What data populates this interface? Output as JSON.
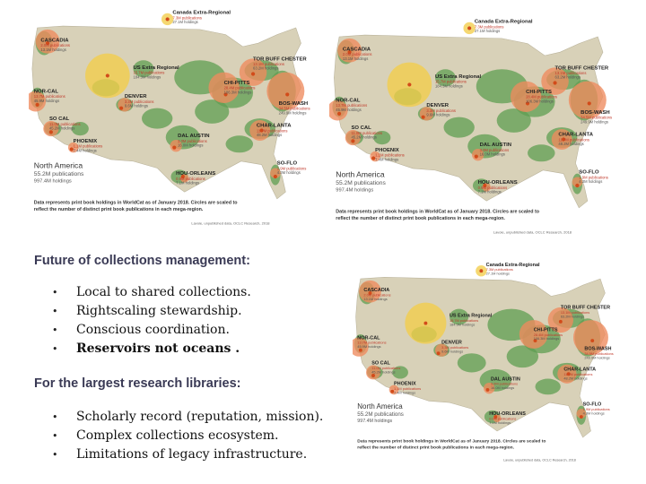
{
  "maps": [
    {
      "regions": [
        {
          "name": "CASCADIA",
          "line1": "2.0M publications",
          "line2": "13.1M holdings"
        },
        {
          "name": "NOR-CAL",
          "line1": "13.7M publications",
          "line2": "45.9M holdings"
        },
        {
          "name": "SO CAL",
          "line1": "11.0M publications",
          "line2": "45.2M holdings"
        },
        {
          "name": "PHOENIX",
          "line1": "1.1M publications",
          "line2": "7.4M holdings"
        },
        {
          "name": "DENVER",
          "line1": "3.3M publications",
          "line2": "9.6M holdings"
        },
        {
          "name": "US Extra Regional",
          "line1": "15.7M publications",
          "line2": "184.3M holdings"
        },
        {
          "name": "Canada Extra-Regional",
          "line1": "7.3M publications",
          "line2": "27.1M holdings"
        },
        {
          "name": "TOR BUFF CHESTER",
          "line1": "13.1M publications",
          "line2": "63.2M holdings"
        },
        {
          "name": "CHI-PITTS",
          "line1": "28.4M publications",
          "line2": "106.3M holdings"
        },
        {
          "name": "BOS-WASH",
          "line1": "34.5M publications",
          "line2": "249.9M holdings"
        },
        {
          "name": "CHAR-LANTA",
          "line1": "11.7M publications",
          "line2": "48.2M holdings"
        },
        {
          "name": "DAL AUSTIN",
          "line1": "3.0M publications",
          "line2": "16.0M holdings"
        },
        {
          "name": "HOU-ORLEANS",
          "line1": "0.9M publications",
          "line2": "7.1M holdings"
        },
        {
          "name": "SO-FLO",
          "line1": "1.9M publications",
          "line2": "4.3M holdings"
        }
      ],
      "summary_title": "North America",
      "summary_pubs": "55.2M publications",
      "summary_holdings": "997.4M holdings",
      "caption": "Data represents print book holdings in WorldCat as of January 2018. Circles are scaled to reflect the number of distinct print book publications in each mega-region.",
      "credit": "Lavoie, unpublished data, OCLC Research, 2018"
    }
  ],
  "heading1": "Future of collections management:",
  "list1": [
    "Local to shared collections.",
    "Rightscaling stewardship.",
    "Conscious coordination.",
    "Reservoirs not oceans ."
  ],
  "heading2": "For the largest research libraries:",
  "list2": [
    "Scholarly record (reputation, mission).",
    "Complex collections ecosystem.",
    "Limitations of legacy infrastructure."
  ],
  "bullet_glyph": "•",
  "colors": {
    "land": "#d8d1b8",
    "green": "#5f9e52",
    "water": "#ffffff",
    "yellow_circle": "#f2cd4a",
    "orange_circle": "#ee8a5e",
    "dot": "#d24b1a",
    "heading": "#3a3a55"
  }
}
